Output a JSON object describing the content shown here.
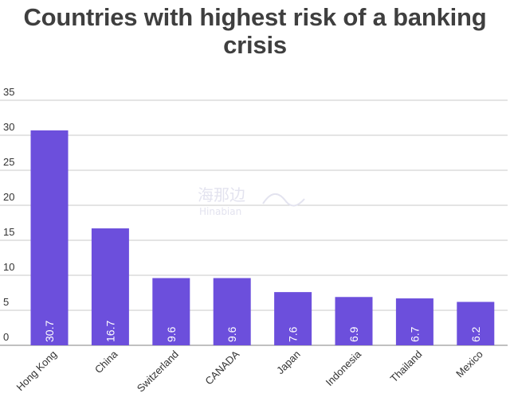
{
  "title": "Countries with highest risk of a banking crisis",
  "watermark": {
    "line1": "海那边",
    "line2": "Hinabian"
  },
  "chart_data": {
    "type": "bar",
    "title": "Countries with highest risk of a banking crisis",
    "xlabel": "",
    "ylabel": "",
    "categories": [
      "Hong Kong",
      "China",
      "Switzerland",
      "CANADA",
      "Japan",
      "Indonesia",
      "Thailand",
      "Mexico"
    ],
    "values": [
      30.7,
      16.7,
      9.6,
      9.6,
      7.6,
      6.9,
      6.7,
      6.2
    ],
    "data_labels": [
      "30.7",
      "16.7",
      "9.6",
      "9.6",
      "7.6",
      "6.9",
      "6.7",
      "6.2"
    ],
    "ylim": [
      0,
      35
    ],
    "yticks": [
      "0",
      "5",
      "10",
      "15",
      "20",
      "25",
      "30",
      "35"
    ],
    "grid": true,
    "legend": "none",
    "bar_color": "#6c4fdc",
    "grid_color": "#c8c8c8"
  }
}
